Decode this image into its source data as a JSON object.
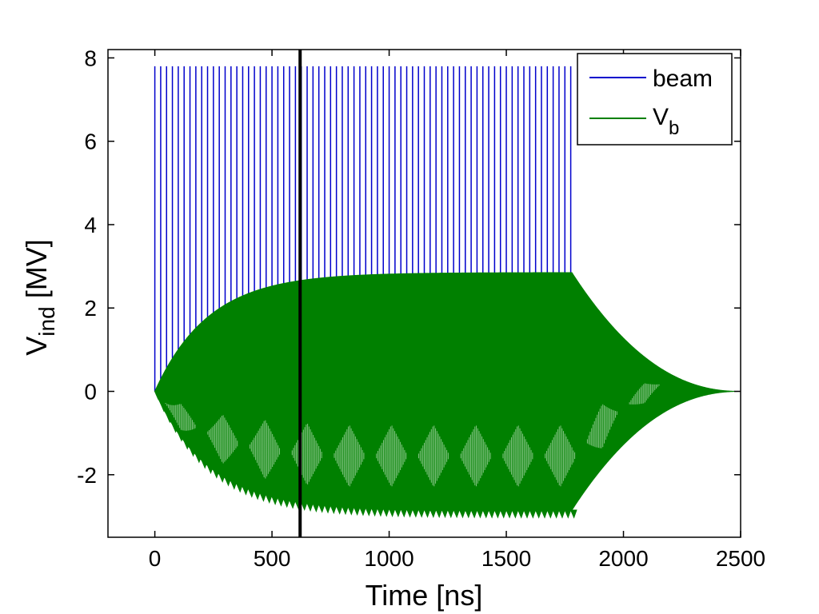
{
  "chart_data": {
    "type": "line",
    "xlabel": "Time [ns]",
    "ylabel_main": "V",
    "ylabel_sub": "ind",
    "ylabel_unit": "[MV]",
    "xlim": [
      -200,
      2500
    ],
    "ylim": [
      -3.5,
      8.2
    ],
    "xticks": [
      0,
      500,
      1000,
      1500,
      2000,
      2500
    ],
    "yticks": [
      -2,
      0,
      2,
      4,
      6,
      8
    ],
    "xtick_labels": [
      "0",
      "500",
      "1000",
      "1500",
      "2000",
      "2500"
    ],
    "ytick_labels": [
      "-2",
      "0",
      "2",
      "4",
      "6",
      "8"
    ],
    "grid": false,
    "legend_position": "top-right",
    "series": [
      {
        "name": "beam",
        "color": "#0000cc",
        "kind": "spike-train",
        "start": 0,
        "end": 1780,
        "spacing": 25,
        "peak": 7.8
      },
      {
        "name": "V",
        "name_sub": "b",
        "color": "#008000",
        "kind": "oscillating-envelope",
        "fill_start": 0,
        "fill_end": 1780,
        "decay_end": 2500,
        "steady_upper": 2.85,
        "steady_lower": -2.85,
        "rise_tau": 230
      }
    ],
    "marker_line": {
      "x": 620,
      "color": "#000000"
    }
  }
}
